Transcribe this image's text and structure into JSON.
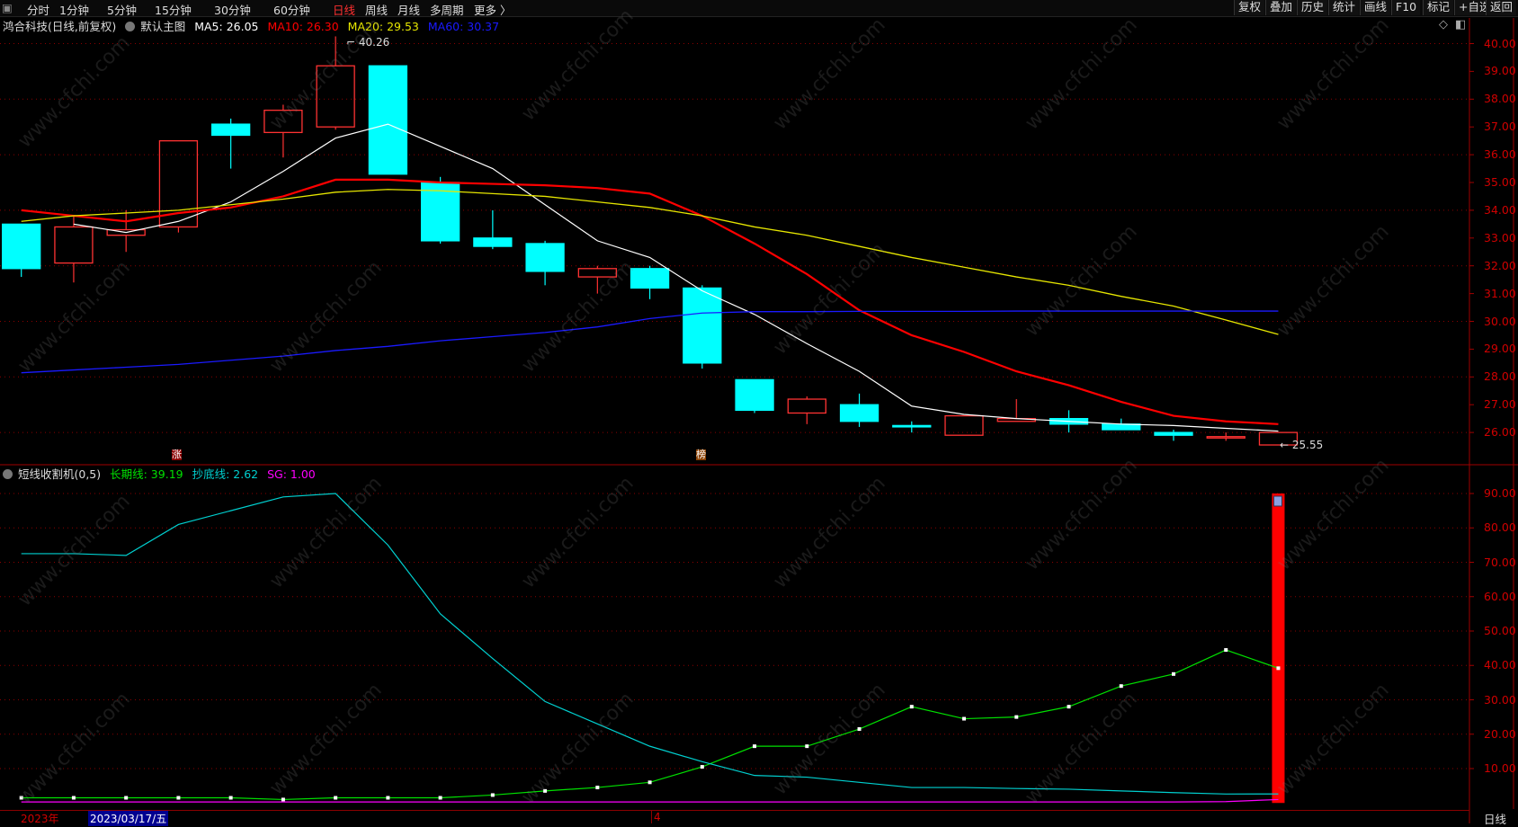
{
  "toolbar": {
    "periods": [
      "分时",
      "1分钟",
      "5分钟",
      "15分钟",
      "30分钟",
      "60分钟",
      "日线",
      "周线",
      "月线",
      "多周期",
      "更多 〉"
    ],
    "active_period": "日线",
    "right_buttons": [
      "复权",
      "叠加",
      "历史",
      "统计",
      "画线",
      "F10",
      "标记",
      "+自选",
      "返回"
    ]
  },
  "main_legend": {
    "title": "鸿合科技(日线,前复权)",
    "template": "默认主图",
    "ma5": "MA5: 26.05",
    "ma10": "MA10: 26.30",
    "ma20": "MA20: 29.53",
    "ma60": "MA60: 30.37"
  },
  "sub_legend": {
    "title": "短线收割机(0,5)",
    "long_line": "长期线: 39.19",
    "bottom_line": "抄底线: 2.62",
    "sg": "SG: 1.00"
  },
  "annotations": {
    "high": "40.26",
    "low": "25.55",
    "marker_zhang": "涨",
    "marker_bang": "榜"
  },
  "date_bar": {
    "year": "2023年",
    "cursor_date": "2023/03/17/五",
    "month": "4",
    "period_label": "日线"
  },
  "colors": {
    "up": "#ff3232",
    "down": "#00ffff",
    "ma5": "#ffffff",
    "ma10": "#ff0000",
    "ma20": "#e6e600",
    "ma60": "#1a1aff",
    "long_line": "#00e000",
    "bottom_line": "#00d0d0",
    "sg": "#ff00ff",
    "axis": "#d00000"
  },
  "watermark": "www.cfchi.com",
  "chart_data": [
    {
      "type": "candlestick",
      "yaxis_ticks": [
        "40.00",
        "39.00",
        "38.00",
        "37.00",
        "36.00",
        "35.00",
        "34.00",
        "33.00",
        "32.00",
        "31.00",
        "30.00",
        "29.00",
        "28.00",
        "27.00",
        "26.00"
      ],
      "ylim": [
        25.3,
        40.3
      ],
      "grid": true,
      "candles": [
        {
          "o": 33.5,
          "h": 33.5,
          "l": 31.6,
          "c": 31.9
        },
        {
          "o": 32.1,
          "h": 33.8,
          "l": 31.4,
          "c": 33.4
        },
        {
          "o": 33.1,
          "h": 34.0,
          "l": 32.5,
          "c": 33.3
        },
        {
          "o": 33.4,
          "h": 36.5,
          "l": 33.2,
          "c": 36.5
        },
        {
          "o": 37.1,
          "h": 37.3,
          "l": 35.5,
          "c": 36.7
        },
        {
          "o": 36.8,
          "h": 37.8,
          "l": 35.9,
          "c": 37.6
        },
        {
          "o": 37.0,
          "h": 40.26,
          "l": 36.9,
          "c": 39.2
        },
        {
          "o": 39.2,
          "h": 39.2,
          "l": 35.3,
          "c": 35.3
        },
        {
          "o": 35.0,
          "h": 35.2,
          "l": 32.8,
          "c": 32.9
        },
        {
          "o": 33.0,
          "h": 34.0,
          "l": 32.6,
          "c": 32.7
        },
        {
          "o": 32.8,
          "h": 32.9,
          "l": 31.3,
          "c": 31.8
        },
        {
          "o": 31.6,
          "h": 32.0,
          "l": 31.0,
          "c": 31.9
        },
        {
          "o": 31.9,
          "h": 32.0,
          "l": 30.8,
          "c": 31.2
        },
        {
          "o": 31.2,
          "h": 31.3,
          "l": 28.3,
          "c": 28.5
        },
        {
          "o": 27.9,
          "h": 27.9,
          "l": 26.7,
          "c": 26.8
        },
        {
          "o": 26.7,
          "h": 27.3,
          "l": 26.3,
          "c": 27.2
        },
        {
          "o": 27.0,
          "h": 27.4,
          "l": 26.2,
          "c": 26.4
        },
        {
          "o": 26.25,
          "h": 26.4,
          "l": 26.0,
          "c": 26.2
        },
        {
          "o": 25.9,
          "h": 26.6,
          "l": 25.9,
          "c": 26.6
        },
        {
          "o": 26.4,
          "h": 27.2,
          "l": 26.4,
          "c": 26.5
        },
        {
          "o": 26.5,
          "h": 26.8,
          "l": 26.0,
          "c": 26.3
        },
        {
          "o": 26.3,
          "h": 26.5,
          "l": 26.1,
          "c": 26.1
        },
        {
          "o": 26.0,
          "h": 26.1,
          "l": 25.7,
          "c": 25.9
        },
        {
          "o": 25.8,
          "h": 26.0,
          "l": 25.7,
          "c": 25.85
        },
        {
          "o": 25.55,
          "h": 26.0,
          "l": 25.55,
          "c": 26.0
        }
      ],
      "series": [
        {
          "name": "MA5",
          "values": [
            null,
            33.5,
            33.2,
            33.6,
            34.3,
            35.4,
            36.6,
            37.1,
            36.3,
            35.5,
            34.2,
            32.9,
            32.3,
            31.1,
            30.25,
            29.2,
            28.2,
            26.95,
            26.65,
            26.5,
            26.4,
            26.3,
            26.25,
            26.15,
            26.05
          ]
        },
        {
          "name": "MA10",
          "values": [
            34.0,
            33.8,
            33.6,
            33.9,
            34.1,
            34.5,
            35.1,
            35.1,
            35.0,
            34.95,
            34.9,
            34.8,
            34.6,
            33.8,
            32.8,
            31.7,
            30.4,
            29.5,
            28.9,
            28.2,
            27.7,
            27.1,
            26.6,
            26.4,
            26.3
          ]
        },
        {
          "name": "MA20",
          "values": [
            33.6,
            33.8,
            33.9,
            34.0,
            34.2,
            34.4,
            34.65,
            34.75,
            34.7,
            34.6,
            34.5,
            34.3,
            34.1,
            33.8,
            33.4,
            33.1,
            32.7,
            32.3,
            31.95,
            31.6,
            31.3,
            30.9,
            30.55,
            30.05,
            29.53
          ]
        },
        {
          "name": "MA60",
          "values": [
            28.15,
            28.25,
            28.35,
            28.45,
            28.6,
            28.75,
            28.95,
            29.1,
            29.3,
            29.45,
            29.6,
            29.8,
            30.1,
            30.3,
            30.35,
            30.35,
            30.36,
            30.36,
            30.36,
            30.37,
            30.37,
            30.37,
            30.37,
            30.37,
            30.37
          ]
        }
      ]
    },
    {
      "type": "line",
      "yaxis_ticks": [
        "90.00",
        "80.00",
        "70.00",
        "60.00",
        "50.00",
        "40.00",
        "30.00",
        "20.00",
        "10.00"
      ],
      "ylim": [
        0,
        90
      ],
      "grid": true,
      "series": [
        {
          "name": "长期线",
          "values": [
            1.5,
            1.5,
            1.5,
            1.5,
            1.5,
            1.0,
            1.5,
            1.5,
            1.5,
            2.3,
            3.5,
            4.5,
            6.0,
            10.5,
            16.5,
            16.5,
            21.5,
            28.0,
            24.5,
            25.0,
            28.0,
            34.0,
            37.5,
            44.5,
            39.19
          ]
        },
        {
          "name": "抄底线",
          "values": [
            72.5,
            72.5,
            72.0,
            81.0,
            85.0,
            89.0,
            90.0,
            75.0,
            55.0,
            42.0,
            29.5,
            23.0,
            16.5,
            12.0,
            8.0,
            7.5,
            6.0,
            4.5,
            4.5,
            4.2,
            4.0,
            3.5,
            3.0,
            2.6,
            2.62
          ]
        },
        {
          "name": "SG",
          "values": [
            0.3,
            0.3,
            0.3,
            0.3,
            0.3,
            0.3,
            0.3,
            0.3,
            0.3,
            0.3,
            0.3,
            0.3,
            0.3,
            0.3,
            0.3,
            0.3,
            0.3,
            0.3,
            0.3,
            0.3,
            0.3,
            0.3,
            0.3,
            0.4,
            1.0
          ]
        }
      ],
      "signal_bar": {
        "index": 24,
        "value": 90
      }
    }
  ]
}
